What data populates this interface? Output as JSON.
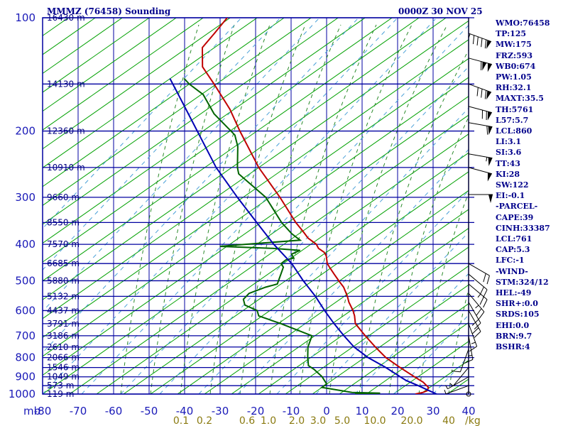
{
  "header": {
    "station": "MMMZ (76458) Sounding",
    "valid": "0000Z 30 NOV 25"
  },
  "chart_data": {
    "type": "line",
    "title": "MMMZ (76458) Sounding",
    "subtitle": "0000Z 30 NOV 25",
    "xlabel": "mb",
    "x_axis": {
      "label": "mb",
      "range": [
        -80,
        40
      ],
      "ticks": [
        -80,
        -70,
        -60,
        -50,
        -40,
        -30,
        -20,
        -10,
        0,
        10,
        20,
        30,
        40
      ],
      "tick_labels": [
        "-80",
        "-70",
        "-60",
        "-50",
        "-40",
        "-30",
        "-20",
        "-10",
        "0",
        "10",
        "20",
        "30",
        "40"
      ]
    },
    "y_axis": {
      "scale": "log-pressure",
      "range": [
        1000,
        100
      ],
      "ticks": [
        100,
        200,
        300,
        400,
        500,
        600,
        700,
        800,
        900,
        1000
      ],
      "tick_labels": [
        "100",
        "200",
        "300",
        "400",
        "500",
        "600",
        "700",
        "800",
        "900",
        "1000"
      ]
    },
    "height_labels": [
      {
        "p": 100,
        "label": "16430 m"
      },
      {
        "p": 150,
        "label": "14130 m"
      },
      {
        "p": 200,
        "label": "12360 m"
      },
      {
        "p": 250,
        "label": "10910 m"
      },
      {
        "p": 300,
        "label": "9660 m"
      },
      {
        "p": 350,
        "label": "8550 m"
      },
      {
        "p": 400,
        "label": "7570 m"
      },
      {
        "p": 450,
        "label": "6685 m"
      },
      {
        "p": 500,
        "label": "5880 m"
      },
      {
        "p": 550,
        "label": "5132 m"
      },
      {
        "p": 600,
        "label": "4437 m"
      },
      {
        "p": 650,
        "label": "3791 m"
      },
      {
        "p": 700,
        "label": "3186 m"
      },
      {
        "p": 750,
        "label": "2610 m"
      },
      {
        "p": 800,
        "label": "2066 m"
      },
      {
        "p": 850,
        "label": "1546 m"
      },
      {
        "p": 900,
        "label": "1049 m"
      },
      {
        "p": 950,
        "label": "573 m"
      },
      {
        "p": 1000,
        "label": "119 m"
      }
    ],
    "mixing_ratio_labels": [
      {
        "label": "0.1",
        "value": 0.1
      },
      {
        "label": "0.2",
        "value": 0.2
      },
      {
        "label": "0.6",
        "value": 0.6
      },
      {
        "label": "1.0",
        "value": 1.0
      },
      {
        "label": "2.0",
        "value": 2.0
      },
      {
        "label": "3.0",
        "value": 3.0
      },
      {
        "label": "5.0",
        "value": 5.0
      },
      {
        "label": "10.0",
        "value": 10.0
      },
      {
        "label": "20.0",
        "value": 20.0
      },
      {
        "label": "40",
        "value": 40
      }
    ],
    "mixing_ratio_unit": "g/kg",
    "series": [
      {
        "name": "Temperature",
        "color": "#c00000",
        "points": [
          [
            1000,
            25
          ],
          [
            990,
            27
          ],
          [
            980,
            28
          ],
          [
            960,
            28
          ],
          [
            930,
            26
          ],
          [
            900,
            23
          ],
          [
            850,
            18
          ],
          [
            800,
            13
          ],
          [
            750,
            9
          ],
          [
            700,
            5
          ],
          [
            650,
            1
          ],
          [
            620,
            0
          ],
          [
            600,
            -1
          ],
          [
            570,
            -3
          ],
          [
            550,
            -4
          ],
          [
            520,
            -6
          ],
          [
            500,
            -8
          ],
          [
            480,
            -10
          ],
          [
            460,
            -12
          ],
          [
            450,
            -13
          ],
          [
            430,
            -14
          ],
          [
            420,
            -15
          ],
          [
            410,
            -17
          ],
          [
            400,
            -18
          ],
          [
            385,
            -21
          ],
          [
            370,
            -23
          ],
          [
            350,
            -26
          ],
          [
            300,
            -33
          ],
          [
            250,
            -42
          ],
          [
            200,
            -51
          ],
          [
            175,
            -56
          ],
          [
            150,
            -63
          ],
          [
            135,
            -68
          ],
          [
            120,
            -70
          ],
          [
            110,
            -68
          ],
          [
            100,
            -66
          ]
        ]
      },
      {
        "name": "Dewpoint",
        "color": "#006400",
        "points": [
          [
            1000,
            8
          ],
          [
            995,
            15
          ],
          [
            990,
            7
          ],
          [
            960,
            -2
          ],
          [
            940,
            -1
          ],
          [
            920,
            -2
          ],
          [
            900,
            -3
          ],
          [
            860,
            -6
          ],
          [
            840,
            -8
          ],
          [
            800,
            -9
          ],
          [
            750,
            -10
          ],
          [
            700,
            -10
          ],
          [
            650,
            -20
          ],
          [
            620,
            -27
          ],
          [
            600,
            -28
          ],
          [
            580,
            -32
          ],
          [
            560,
            -33
          ],
          [
            540,
            -32
          ],
          [
            520,
            -28
          ],
          [
            510,
            -25
          ],
          [
            480,
            -25
          ],
          [
            460,
            -25
          ],
          [
            450,
            -26
          ],
          [
            440,
            -25
          ],
          [
            435,
            -23
          ],
          [
            425,
            -24
          ],
          [
            415,
            -22
          ],
          [
            410,
            -30
          ],
          [
            405,
            -45
          ],
          [
            400,
            -38
          ],
          [
            390,
            -23
          ],
          [
            375,
            -26
          ],
          [
            350,
            -30
          ],
          [
            300,
            -37
          ],
          [
            260,
            -47
          ],
          [
            250,
            -48
          ],
          [
            220,
            -50
          ],
          [
            205,
            -52
          ],
          [
            180,
            -60
          ],
          [
            160,
            -65
          ],
          [
            150,
            -70
          ],
          [
            145,
            -72
          ]
        ]
      },
      {
        "name": "Parcel",
        "color": "#0000b4",
        "points": [
          [
            1000,
            31
          ],
          [
            975,
            28
          ],
          [
            950,
            25
          ],
          [
            920,
            21
          ],
          [
            900,
            19
          ],
          [
            850,
            14
          ],
          [
            800,
            8
          ],
          [
            750,
            3
          ],
          [
            700,
            -1
          ],
          [
            650,
            -5
          ],
          [
            600,
            -9
          ],
          [
            550,
            -13
          ],
          [
            500,
            -18
          ],
          [
            450,
            -23
          ],
          [
            400,
            -30
          ],
          [
            350,
            -37
          ],
          [
            300,
            -45
          ],
          [
            250,
            -54
          ],
          [
            200,
            -63
          ],
          [
            160,
            -72
          ],
          [
            145,
            -76
          ]
        ]
      }
    ],
    "wind_barbs": [
      {
        "p": 110,
        "dir": 290,
        "speed": 95
      },
      {
        "p": 128,
        "dir": 285,
        "speed": 110
      },
      {
        "p": 150,
        "dir": 290,
        "speed": 80
      },
      {
        "p": 172,
        "dir": 285,
        "speed": 70
      },
      {
        "p": 190,
        "dir": 280,
        "speed": 60
      },
      {
        "p": 230,
        "dir": 280,
        "speed": 55
      },
      {
        "p": 250,
        "dir": 285,
        "speed": 50
      },
      {
        "p": 295,
        "dir": 270,
        "speed": 50
      },
      {
        "p": 450,
        "dir": 300,
        "speed": 20
      },
      {
        "p": 480,
        "dir": 310,
        "speed": 20
      },
      {
        "p": 510,
        "dir": 310,
        "speed": 25
      },
      {
        "p": 540,
        "dir": 320,
        "speed": 25
      },
      {
        "p": 570,
        "dir": 330,
        "speed": 20
      },
      {
        "p": 600,
        "dir": 330,
        "speed": 20
      },
      {
        "p": 650,
        "dir": 340,
        "speed": 15
      },
      {
        "p": 700,
        "dir": 350,
        "speed": 15
      },
      {
        "p": 760,
        "dir": 20,
        "speed": 10
      },
      {
        "p": 850,
        "dir": 40,
        "speed": 5
      },
      {
        "p": 900,
        "dir": 60,
        "speed": 5
      },
      {
        "p": 950,
        "dir": 70,
        "speed": 5
      },
      {
        "p": 1000,
        "dir": 0,
        "speed": 0
      }
    ]
  },
  "indices": [
    "WMO:76458",
    "TP:125",
    "MW:175",
    "FRZ:593",
    "WB0:674",
    "PW:1.05",
    "RH:32.1",
    "MAXT:35.5",
    "TH:5761",
    "L57:5.7",
    "LCL:860",
    "LI:3.1",
    "SI:3.6",
    "TT:43",
    "KI:28",
    "SW:122",
    "EI:-0.1",
    "-PARCEL-",
    "CAPE:39",
    "CINH:33387",
    "LCL:761",
    "CAP:5.3",
    "LFC:-1",
    "-WIND-",
    "STM:324/12",
    "HEL:-49",
    "SHR+:0.0",
    "SRDS:105",
    "EHI:0.0",
    "BRN:9.7",
    "BSHR:4"
  ],
  "colors": {
    "grid": "#0000a0",
    "dry_adiabat": "#00a000",
    "moist_adiabat": "#2a8a2a",
    "mixing_ratio": "#4aa0d8",
    "temperature": "#c00000",
    "dewpoint": "#006400",
    "parcel": "#0000b4",
    "text": "#00008b"
  }
}
